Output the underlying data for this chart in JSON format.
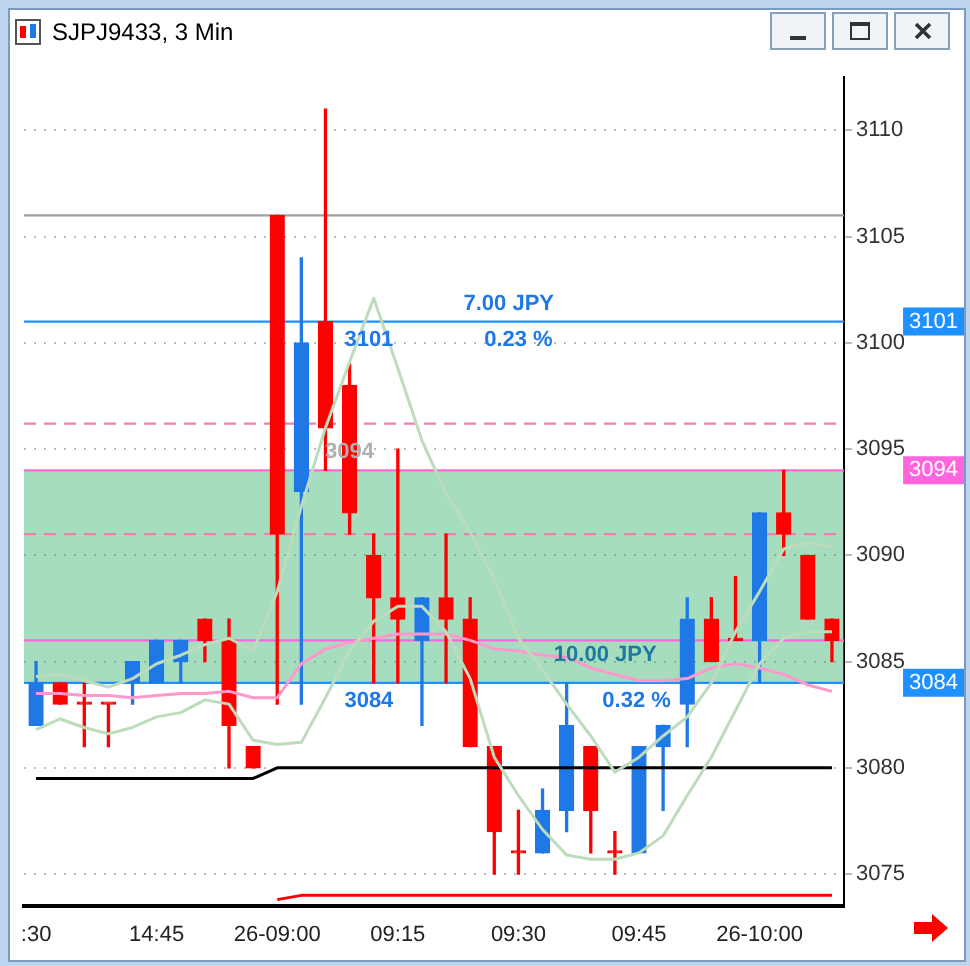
{
  "chart_data": {
    "type": "candlestick",
    "title": "SJPJ9433, 3 Min",
    "categories": [
      ":30",
      null,
      null,
      null,
      null,
      "14:45",
      null,
      null,
      null,
      null,
      "26-09:00",
      null,
      null,
      null,
      null,
      "09:15",
      null,
      null,
      null,
      null,
      "09:30",
      null,
      null,
      null,
      null,
      "09:45",
      null,
      null,
      null,
      null,
      "26-10:00",
      null,
      null,
      null
    ],
    "ohlc": [
      [
        3082,
        3085,
        3082,
        3084
      ],
      [
        3084,
        3084,
        3083,
        3083
      ],
      [
        3083,
        3084,
        3081,
        3083
      ],
      [
        3083,
        3083,
        3081,
        3083
      ],
      [
        3084,
        3085,
        3083,
        3085
      ],
      [
        3084,
        3086,
        3084,
        3086
      ],
      [
        3085,
        3086,
        3084,
        3086
      ],
      [
        3087,
        3087,
        3085,
        3086
      ],
      [
        3086,
        3087,
        3080,
        3082
      ],
      [
        3081,
        3081,
        3080,
        3080
      ],
      [
        3106,
        3106,
        3083,
        3091
      ],
      [
        3093,
        3104,
        3083,
        3100
      ],
      [
        3101,
        3111,
        3094,
        3096
      ],
      [
        3098,
        3099,
        3091,
        3092
      ],
      [
        3090,
        3091,
        3084,
        3088
      ],
      [
        3088,
        3095,
        3084,
        3087
      ],
      [
        3086,
        3088,
        3082,
        3088
      ],
      [
        3088,
        3091,
        3084,
        3087
      ],
      [
        3087,
        3088,
        3081,
        3081
      ],
      [
        3081,
        3081,
        3075,
        3077
      ],
      [
        3076,
        3078,
        3075,
        3076
      ],
      [
        3076,
        3079,
        3076,
        3078
      ],
      [
        3078,
        3084,
        3077,
        3082
      ],
      [
        3081,
        3081,
        3076,
        3078
      ],
      [
        3076,
        3077,
        3075,
        3076
      ],
      [
        3076,
        3081,
        3076,
        3081
      ],
      [
        3081,
        3082,
        3078,
        3082
      ],
      [
        3083,
        3088,
        3081,
        3087
      ],
      [
        3087,
        3088,
        3085,
        3085
      ],
      [
        3086,
        3089,
        3086,
        3086
      ],
      [
        3086,
        3092,
        3084,
        3092
      ],
      [
        3092,
        3094,
        3090,
        3091
      ],
      [
        3090,
        3090,
        3087,
        3087
      ],
      [
        3087,
        3087,
        3085,
        3086
      ]
    ],
    "colors": [
      "#1e78e6",
      "#ff0000",
      "#ff0000",
      "#ff0000",
      "#1e78e6",
      "#1e78e6",
      "#1e78e6",
      "#ff0000",
      "#ff0000",
      "#ff0000",
      "#ff0000",
      "#1e78e6",
      "#ff0000",
      "#ff0000",
      "#ff0000",
      "#ff0000",
      "#1e78e6",
      "#ff0000",
      "#ff0000",
      "#ff0000",
      "#ff0000",
      "#1e78e6",
      "#1e78e6",
      "#ff0000",
      "#ff0000",
      "#1e78e6",
      "#1e78e6",
      "#1e78e6",
      "#ff0000",
      "#ff0000",
      "#1e78e6",
      "#ff0000",
      "#ff0000",
      "#ff0000"
    ],
    "series": [
      {
        "type": "line",
        "color": "#bcdcbc",
        "values": [
          3084.3,
          3084.4,
          3084.1,
          3083.8,
          3084.2,
          3084.9,
          3085.3,
          3085.8,
          3086.1,
          3085.5,
          3088.3,
          3092.3,
          3096.0,
          3099.1,
          3102.1,
          3098.8,
          3095.4,
          3092.9,
          3091.1,
          3088.9,
          3086.1,
          3084.6,
          3083.0,
          3081.5,
          3079.8,
          3080.5,
          3081.5,
          3082.4,
          3084.0,
          3086.4,
          3088.3,
          3090.3,
          3090.6,
          3090.4
        ]
      },
      {
        "type": "line",
        "color": "#bcdcbc",
        "values": [
          3081.8,
          3082.3,
          3081.9,
          3081.6,
          3081.9,
          3082.4,
          3082.6,
          3083.2,
          3083.0,
          3081.3,
          3081.1,
          3081.2,
          3083.3,
          3085.5,
          3086.9,
          3087.6,
          3087.6,
          3086.4,
          3084.2,
          3080.5,
          3078.7,
          3077.1,
          3075.9,
          3075.7,
          3075.7,
          3076.0,
          3076.8,
          3078.7,
          3080.5,
          3082.7,
          3084.9,
          3086.1,
          3086.4,
          3086.4
        ]
      },
      {
        "type": "line",
        "color": "#ff99cc",
        "values": [
          3083.5,
          3083.5,
          3083.4,
          3083.4,
          3083.3,
          3083.4,
          3083.5,
          3083.5,
          3083.6,
          3083.3,
          3083.3,
          3084.9,
          3085.6,
          3085.9,
          3086.1,
          3086.3,
          3086.3,
          3086.3,
          3086.0,
          3085.6,
          3085.5,
          3085.3,
          3085.2,
          3084.7,
          3084.4,
          3084.1,
          3084.1,
          3084.2,
          3084.7,
          3084.9,
          3084.7,
          3084.4,
          3083.9,
          3083.6
        ]
      },
      {
        "type": "line",
        "color": "#000000",
        "values": [
          3079.5,
          3079.5,
          3079.5,
          3079.5,
          3079.5,
          3079.5,
          3079.5,
          3079.5,
          3079.5,
          3079.5,
          3080,
          3080,
          3080,
          3080,
          3080,
          3080,
          3080,
          3080,
          3080,
          3080,
          3080,
          3080,
          3080,
          3080,
          3080,
          3080,
          3080,
          3080,
          3080,
          3080,
          3080,
          3080,
          3080,
          3080
        ]
      },
      {
        "type": "line",
        "color": "#ff0000",
        "values": [
          null,
          null,
          null,
          null,
          null,
          null,
          null,
          null,
          null,
          null,
          3073.8,
          3074,
          3074,
          3074,
          3074,
          3074,
          3074,
          3074,
          3074,
          3074,
          3074,
          3074,
          3074,
          3074,
          3074,
          3074,
          3074,
          3074,
          3074,
          3074,
          3074,
          3074,
          3074,
          3074
        ]
      }
    ],
    "ylim": [
      3073.5,
      3112.5
    ],
    "yticks": [
      3075,
      3080,
      3085,
      3090,
      3095,
      3100,
      3105,
      3110
    ],
    "grid": "y",
    "legend": false,
    "ref_lines": [
      {
        "axis": "y",
        "value": 3106,
        "color": "#a0a0a0"
      },
      {
        "axis": "y",
        "value": 3096.2,
        "color": "#f080b0",
        "line_style": "dashed"
      },
      {
        "axis": "y",
        "value": 3091,
        "color": "#f080b0",
        "line_style": "dashed"
      },
      {
        "axis": "y",
        "value": 3086,
        "color": "#ff66dd"
      },
      {
        "axis": "y",
        "value": 3094,
        "color": "#ff66dd",
        "label": "3094"
      },
      {
        "axis": "y",
        "value": 3101,
        "color": "#1e90ff",
        "label": "3101"
      },
      {
        "axis": "y",
        "value": 3084,
        "color": "#1e90ff",
        "label": "3084"
      }
    ],
    "bands": [
      {
        "axis": "y",
        "from": 3084,
        "to": 3094,
        "color": "#3cb371"
      }
    ],
    "annotations": [
      {
        "text": "7.00 JPY",
        "y": 3101
      },
      {
        "text": "3101",
        "y": 3101
      },
      {
        "text": "0.23 %",
        "y": 3101
      },
      {
        "text": "3094",
        "y": 3094
      },
      {
        "text": "10.00 JPY",
        "y": 3084
      },
      {
        "text": "3084",
        "y": 3084
      },
      {
        "text": "0.32 %",
        "y": 3084
      }
    ]
  }
}
